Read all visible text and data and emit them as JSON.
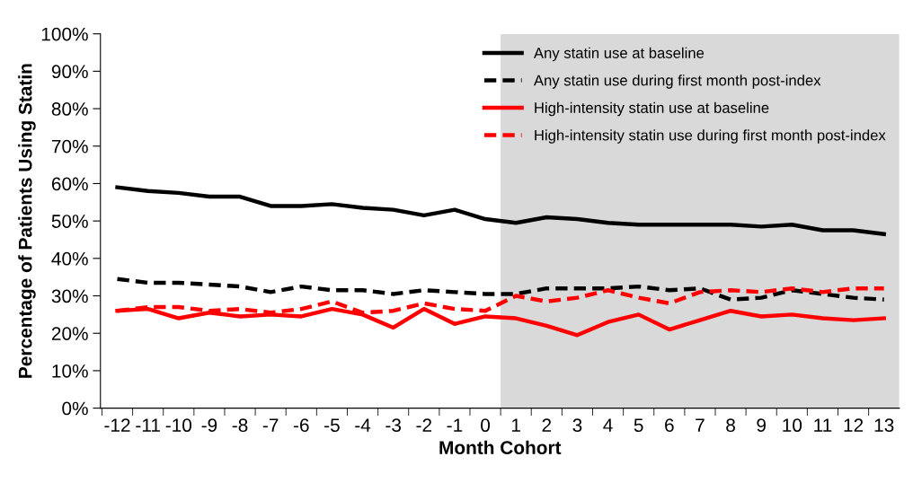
{
  "chart_data": {
    "type": "line",
    "xlabel": "Month Cohort",
    "ylabel": "Percentage of Patients Using Statin",
    "categories": [
      "-12",
      "-11",
      "-10",
      "-9",
      "-8",
      "-7",
      "-6",
      "-5",
      "-4",
      "-3",
      "-2",
      "-1",
      "0",
      "1",
      "2",
      "3",
      "4",
      "5",
      "6",
      "7",
      "8",
      "9",
      "10",
      "11",
      "12",
      "13"
    ],
    "series": [
      {
        "name": "Any statin use at baseline",
        "color": "#000000",
        "line_style": "solid",
        "values": [
          59,
          58,
          57.5,
          56.5,
          56.5,
          54,
          54,
          54.5,
          53.5,
          53,
          51.5,
          53,
          50.5,
          49.5,
          51,
          50.5,
          49.5,
          49,
          49,
          49,
          49,
          48.5,
          49,
          47.5,
          47.5,
          46.5
        ]
      },
      {
        "name": "Any statin use during first month post-index",
        "color": "#000000",
        "line_style": "dashed",
        "values": [
          34.5,
          33.5,
          33.5,
          33,
          32.5,
          31,
          32.5,
          31.5,
          31.5,
          30.5,
          31.5,
          31,
          30.5,
          30.5,
          32,
          32,
          32,
          32.5,
          31.5,
          32,
          29,
          29.5,
          31.5,
          30.5,
          29.5,
          29
        ]
      },
      {
        "name": "High-intensity statin use at baseline",
        "color": "#ff0000",
        "line_style": "solid",
        "values": [
          26,
          26.5,
          24,
          25.5,
          24.5,
          25,
          24.5,
          26.5,
          25,
          21.5,
          26.5,
          22.5,
          24.5,
          24,
          22,
          19.5,
          23,
          25,
          21,
          23.5,
          26,
          24.5,
          25,
          24,
          23.5,
          24
        ]
      },
      {
        "name": "High-intensity statin use during first month post-index",
        "color": "#ff0000",
        "line_style": "dashed",
        "values": [
          26,
          27,
          27,
          26,
          26.5,
          25.5,
          26.5,
          28.5,
          25.5,
          26,
          28,
          26.5,
          26,
          30,
          28.5,
          29.5,
          31.5,
          29.5,
          28,
          31,
          31.5,
          31,
          32,
          31,
          32,
          32
        ]
      }
    ],
    "ylim": [
      0,
      100
    ],
    "yticks": [
      {
        "value": 0,
        "label": "0%"
      },
      {
        "value": 10,
        "label": "10%"
      },
      {
        "value": 20,
        "label": "20%"
      },
      {
        "value": 30,
        "label": "30%"
      },
      {
        "value": 40,
        "label": "40%"
      },
      {
        "value": 50,
        "label": "50%"
      },
      {
        "value": 60,
        "label": "60%"
      },
      {
        "value": 70,
        "label": "70%"
      },
      {
        "value": 80,
        "label": "80%"
      },
      {
        "value": 90,
        "label": "90%"
      },
      {
        "value": 100,
        "label": "100%"
      }
    ],
    "bands": [
      {
        "axis": "x",
        "from": "0",
        "to": "13",
        "color": "#d9d9d9"
      }
    ],
    "grid": false,
    "legend": "top right",
    "marker": "none"
  }
}
